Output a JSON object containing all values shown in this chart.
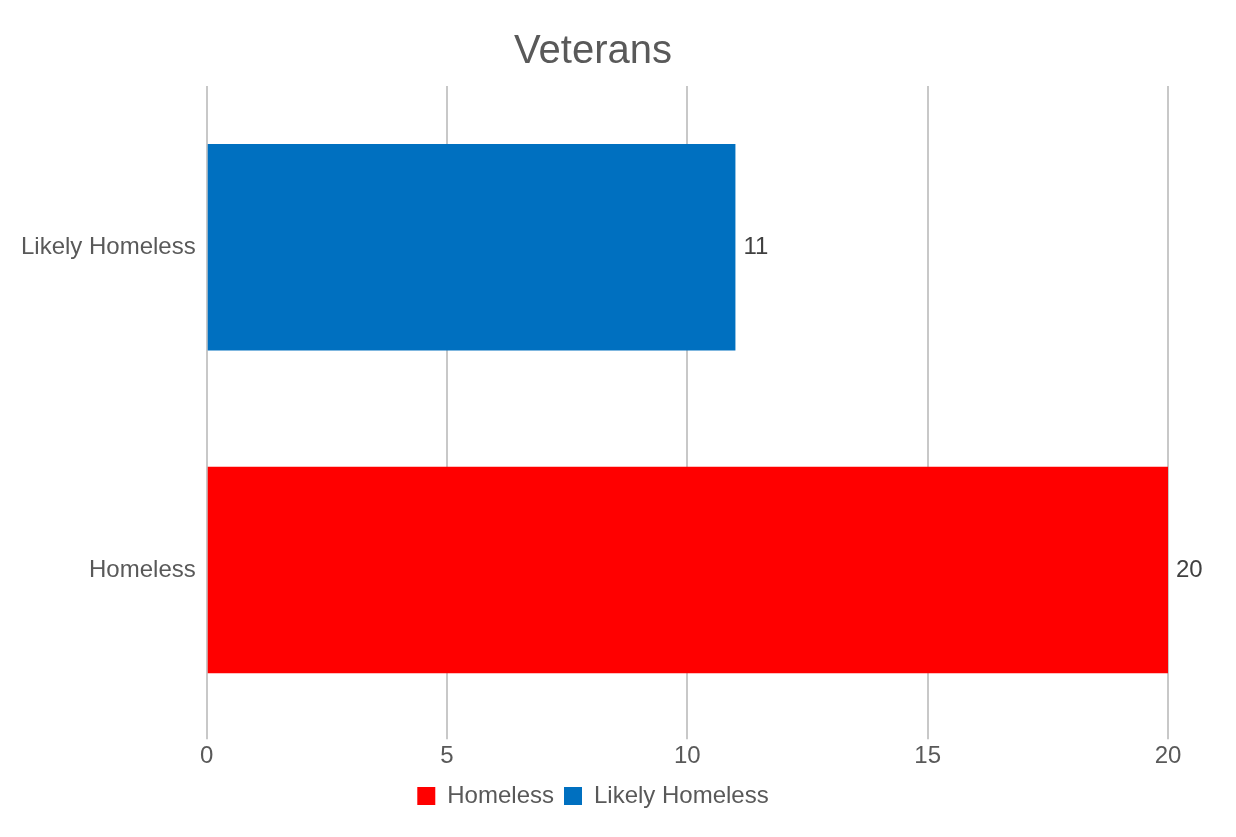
{
  "chart_data": {
    "type": "bar",
    "title": "Veterans",
    "orientation": "horizontal",
    "categories": [
      "Likely Homeless",
      "Homeless"
    ],
    "series": [
      {
        "name": "Homeless",
        "color": "#ff0000",
        "values": [
          null,
          20
        ]
      },
      {
        "name": "Likely Homeless",
        "color": "#0070c0",
        "values": [
          11,
          null
        ]
      }
    ],
    "xlim": [
      0,
      20
    ],
    "xticks": [
      0,
      5,
      10,
      15,
      20
    ],
    "grid": "x",
    "legend": "bottom",
    "data_labels": true
  }
}
